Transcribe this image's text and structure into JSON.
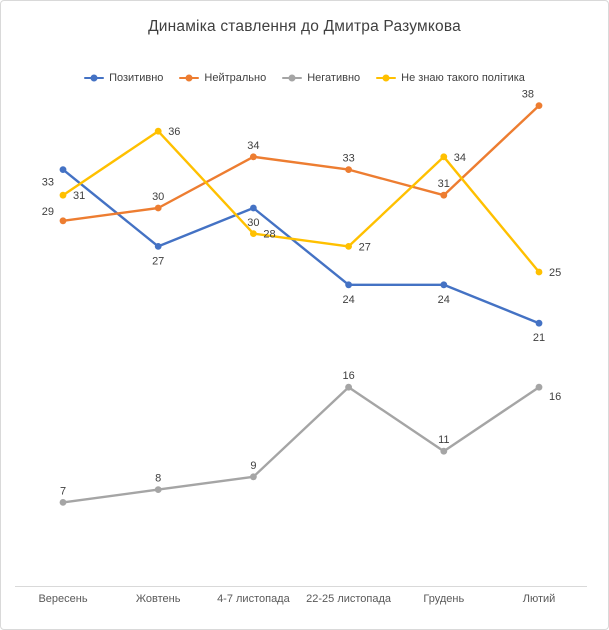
{
  "frame": {
    "background": "#ffffff",
    "border_color": "#d9d9d9"
  },
  "chart_data": {
    "type": "line",
    "title": "Динаміка ставлення до Дмитра Разумкова",
    "categories": [
      "Вересень",
      "Жовтень",
      "4-7 листопада",
      "22-25 листопада",
      "Грудень",
      "Лютий"
    ],
    "series": [
      {
        "name": "Позитивно",
        "color": "#4472C4",
        "values": [
          33,
          27,
          30,
          24,
          24,
          21
        ],
        "label_positions": [
          "left-below",
          "below",
          "below",
          "below",
          "below",
          "below"
        ]
      },
      {
        "name": "Нейтрально",
        "color": "#ED7D31",
        "values": [
          29,
          30,
          34,
          33,
          31,
          38
        ],
        "label_positions": [
          "left-above",
          "above",
          "above",
          "above",
          "above",
          "above-left"
        ]
      },
      {
        "name": "Негативно",
        "color": "#A5A5A5",
        "values": [
          7,
          8,
          9,
          16,
          11,
          16
        ],
        "label_positions": [
          "above",
          "above",
          "above",
          "above",
          "above",
          "right-below"
        ]
      },
      {
        "name": "Не знаю такого політика",
        "color": "#FFC000",
        "values": [
          31,
          36,
          28,
          27,
          34,
          25
        ],
        "label_positions": [
          "right",
          "right",
          "right",
          "right",
          "right",
          "right"
        ]
      }
    ],
    "legend_position": "top",
    "grid": false,
    "data_labels": true,
    "ylim": [
      0,
      40
    ],
    "colors": {
      "data_label": "#404040",
      "category_label": "#595959",
      "axis_line": "#d9d9d9",
      "title": "#3f3f3f"
    }
  }
}
